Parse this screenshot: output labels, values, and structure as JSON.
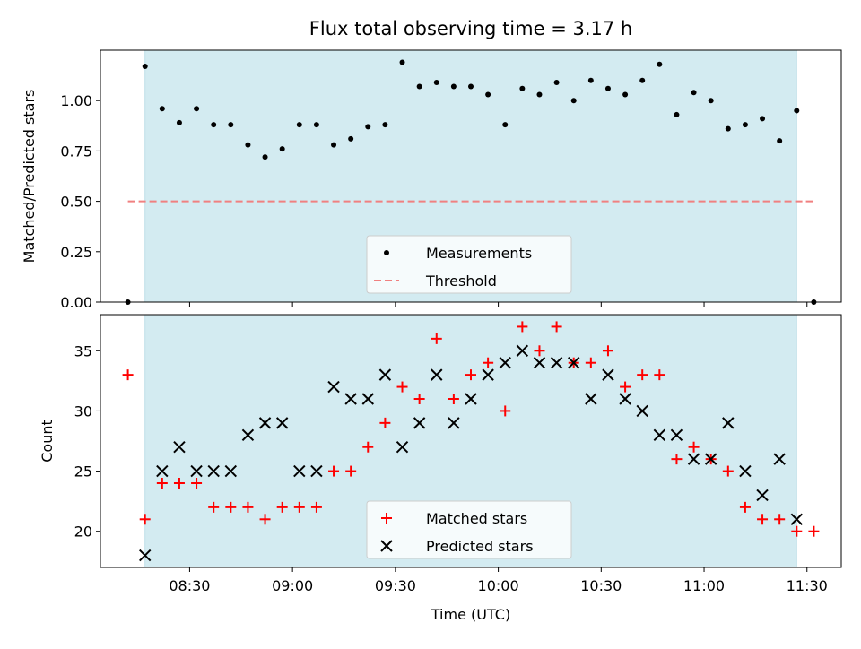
{
  "chart_data": [
    {
      "type": "scatter",
      "title": "Flux total observing time = 3.17 h",
      "xlabel": "",
      "ylabel": "Matched/Predicted stars",
      "ylim": [
        0,
        1.25
      ],
      "yticks": [
        "0.00",
        "0.25",
        "0.50",
        "0.75",
        "1.00"
      ],
      "ytick_values": [
        0,
        0.25,
        0.5,
        0.75,
        1.0
      ],
      "xlim": [
        "08:04",
        "11:40"
      ],
      "grid": false,
      "legend_position": "lower-center",
      "shaded_region": {
        "start": "08:17",
        "end": "11:27",
        "color": "#d3ebf1"
      },
      "colors": {
        "measurements": "#000000",
        "threshold": "#f08080"
      },
      "series": [
        {
          "name": "Measurements",
          "marker": "dot",
          "x": [
            "08:12",
            "08:17",
            "08:22",
            "08:27",
            "08:32",
            "08:37",
            "08:42",
            "08:47",
            "08:52",
            "08:57",
            "09:02",
            "09:07",
            "09:12",
            "09:17",
            "09:22",
            "09:27",
            "09:32",
            "09:37",
            "09:42",
            "09:47",
            "09:52",
            "09:57",
            "10:02",
            "10:07",
            "10:12",
            "10:17",
            "10:22",
            "10:27",
            "10:32",
            "10:37",
            "10:42",
            "10:47",
            "10:52",
            "10:57",
            "11:02",
            "11:07",
            "11:12",
            "11:17",
            "11:22",
            "11:27",
            "11:32"
          ],
          "y": [
            0.0,
            1.17,
            0.96,
            0.89,
            0.96,
            0.88,
            0.88,
            0.78,
            0.72,
            0.76,
            0.88,
            0.88,
            0.78,
            0.81,
            0.87,
            0.88,
            1.19,
            1.07,
            1.09,
            1.07,
            1.07,
            1.03,
            0.88,
            1.06,
            1.03,
            1.09,
            1.0,
            1.1,
            1.06,
            1.03,
            1.1,
            1.18,
            0.93,
            1.04,
            1.0,
            0.86,
            0.88,
            0.91,
            0.8,
            0.95,
            0.0
          ]
        },
        {
          "name": "Threshold",
          "style": "dashed",
          "x": [
            "08:12",
            "11:32"
          ],
          "y": [
            0.5,
            0.5
          ]
        }
      ]
    },
    {
      "type": "scatter",
      "title": "",
      "xlabel": "Time (UTC)",
      "ylabel": "Count",
      "ylim": [
        17,
        38
      ],
      "yticks": [
        "20",
        "25",
        "30",
        "35"
      ],
      "ytick_values": [
        20,
        25,
        30,
        35
      ],
      "xticks": [
        "08:30",
        "09:00",
        "09:30",
        "10:00",
        "10:30",
        "11:00",
        "11:30"
      ],
      "xlim": [
        "08:04",
        "11:40"
      ],
      "grid": false,
      "legend_position": "lower-center",
      "shaded_region": {
        "start": "08:17",
        "end": "11:27",
        "color": "#d3ebf1"
      },
      "colors": {
        "matched": "#ff0000",
        "predicted": "#000000"
      },
      "series": [
        {
          "name": "Matched stars",
          "marker": "plus",
          "x": [
            "08:12",
            "08:17",
            "08:22",
            "08:27",
            "08:32",
            "08:37",
            "08:42",
            "08:47",
            "08:52",
            "08:57",
            "09:02",
            "09:07",
            "09:12",
            "09:17",
            "09:22",
            "09:27",
            "09:32",
            "09:37",
            "09:42",
            "09:47",
            "09:52",
            "09:57",
            "10:02",
            "10:07",
            "10:12",
            "10:17",
            "10:22",
            "10:27",
            "10:32",
            "10:37",
            "10:42",
            "10:47",
            "10:52",
            "10:57",
            "11:02",
            "11:07",
            "11:12",
            "11:17",
            "11:22",
            "11:27",
            "11:32"
          ],
          "y": [
            33,
            21,
            24,
            24,
            24,
            22,
            22,
            22,
            21,
            22,
            22,
            22,
            25,
            25,
            27,
            29,
            32,
            31,
            36,
            31,
            33,
            34,
            30,
            37,
            35,
            37,
            34,
            34,
            35,
            32,
            33,
            33,
            26,
            27,
            26,
            25,
            22,
            21,
            21,
            20,
            20
          ]
        },
        {
          "name": "Predicted stars",
          "marker": "x",
          "x": [
            "08:17",
            "08:22",
            "08:27",
            "08:32",
            "08:37",
            "08:42",
            "08:47",
            "08:52",
            "08:57",
            "09:02",
            "09:07",
            "09:12",
            "09:17",
            "09:22",
            "09:27",
            "09:32",
            "09:37",
            "09:42",
            "09:47",
            "09:52",
            "09:57",
            "10:02",
            "10:07",
            "10:12",
            "10:17",
            "10:22",
            "10:27",
            "10:32",
            "10:37",
            "10:42",
            "10:47",
            "10:52",
            "10:57",
            "11:02",
            "11:07",
            "11:12",
            "11:17",
            "11:22",
            "11:27"
          ],
          "y": [
            18,
            25,
            27,
            25,
            25,
            25,
            28,
            29,
            29,
            25,
            25,
            32,
            31,
            31,
            33,
            27,
            29,
            33,
            29,
            31,
            33,
            34,
            35,
            34,
            34,
            34,
            31,
            33,
            31,
            30,
            28,
            28,
            26,
            26,
            29,
            25,
            23,
            26,
            21
          ]
        }
      ]
    }
  ]
}
